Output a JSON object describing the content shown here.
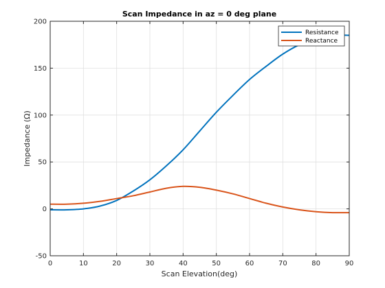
{
  "chart_data": {
    "type": "line",
    "title": "Scan Impedance in az = 0 deg plane",
    "xlabel": "Scan Elevation(deg)",
    "ylabel": "Impedance (Ω)",
    "xlim": [
      0,
      90
    ],
    "ylim": [
      -50,
      200
    ],
    "xticks": [
      0,
      10,
      20,
      30,
      40,
      50,
      60,
      70,
      80,
      90
    ],
    "yticks": [
      -50,
      0,
      50,
      100,
      150,
      200
    ],
    "xtick_labels": [
      "0",
      "10",
      "20",
      "30",
      "40",
      "50",
      "60",
      "70",
      "80",
      "90"
    ],
    "ytick_labels": [
      "-50",
      "0",
      "50",
      "100",
      "150",
      "200"
    ],
    "grid": true,
    "legend_position": "top-right",
    "x": [
      0,
      5,
      10,
      15,
      20,
      25,
      30,
      35,
      40,
      45,
      50,
      55,
      60,
      65,
      70,
      75,
      80,
      85,
      90
    ],
    "series": [
      {
        "name": "Resistance",
        "color": "#0072BD",
        "values": [
          -1,
          -1,
          0,
          3,
          9,
          19,
          31,
          46,
          63,
          83,
          103,
          121,
          138,
          152,
          165,
          175,
          182,
          185,
          185
        ]
      },
      {
        "name": "Reactance",
        "color": "#D95319",
        "values": [
          5,
          5,
          6,
          8,
          11,
          14,
          18,
          22,
          24,
          23,
          20,
          16,
          11,
          6,
          2,
          -1,
          -3,
          -4,
          -4
        ]
      }
    ]
  }
}
